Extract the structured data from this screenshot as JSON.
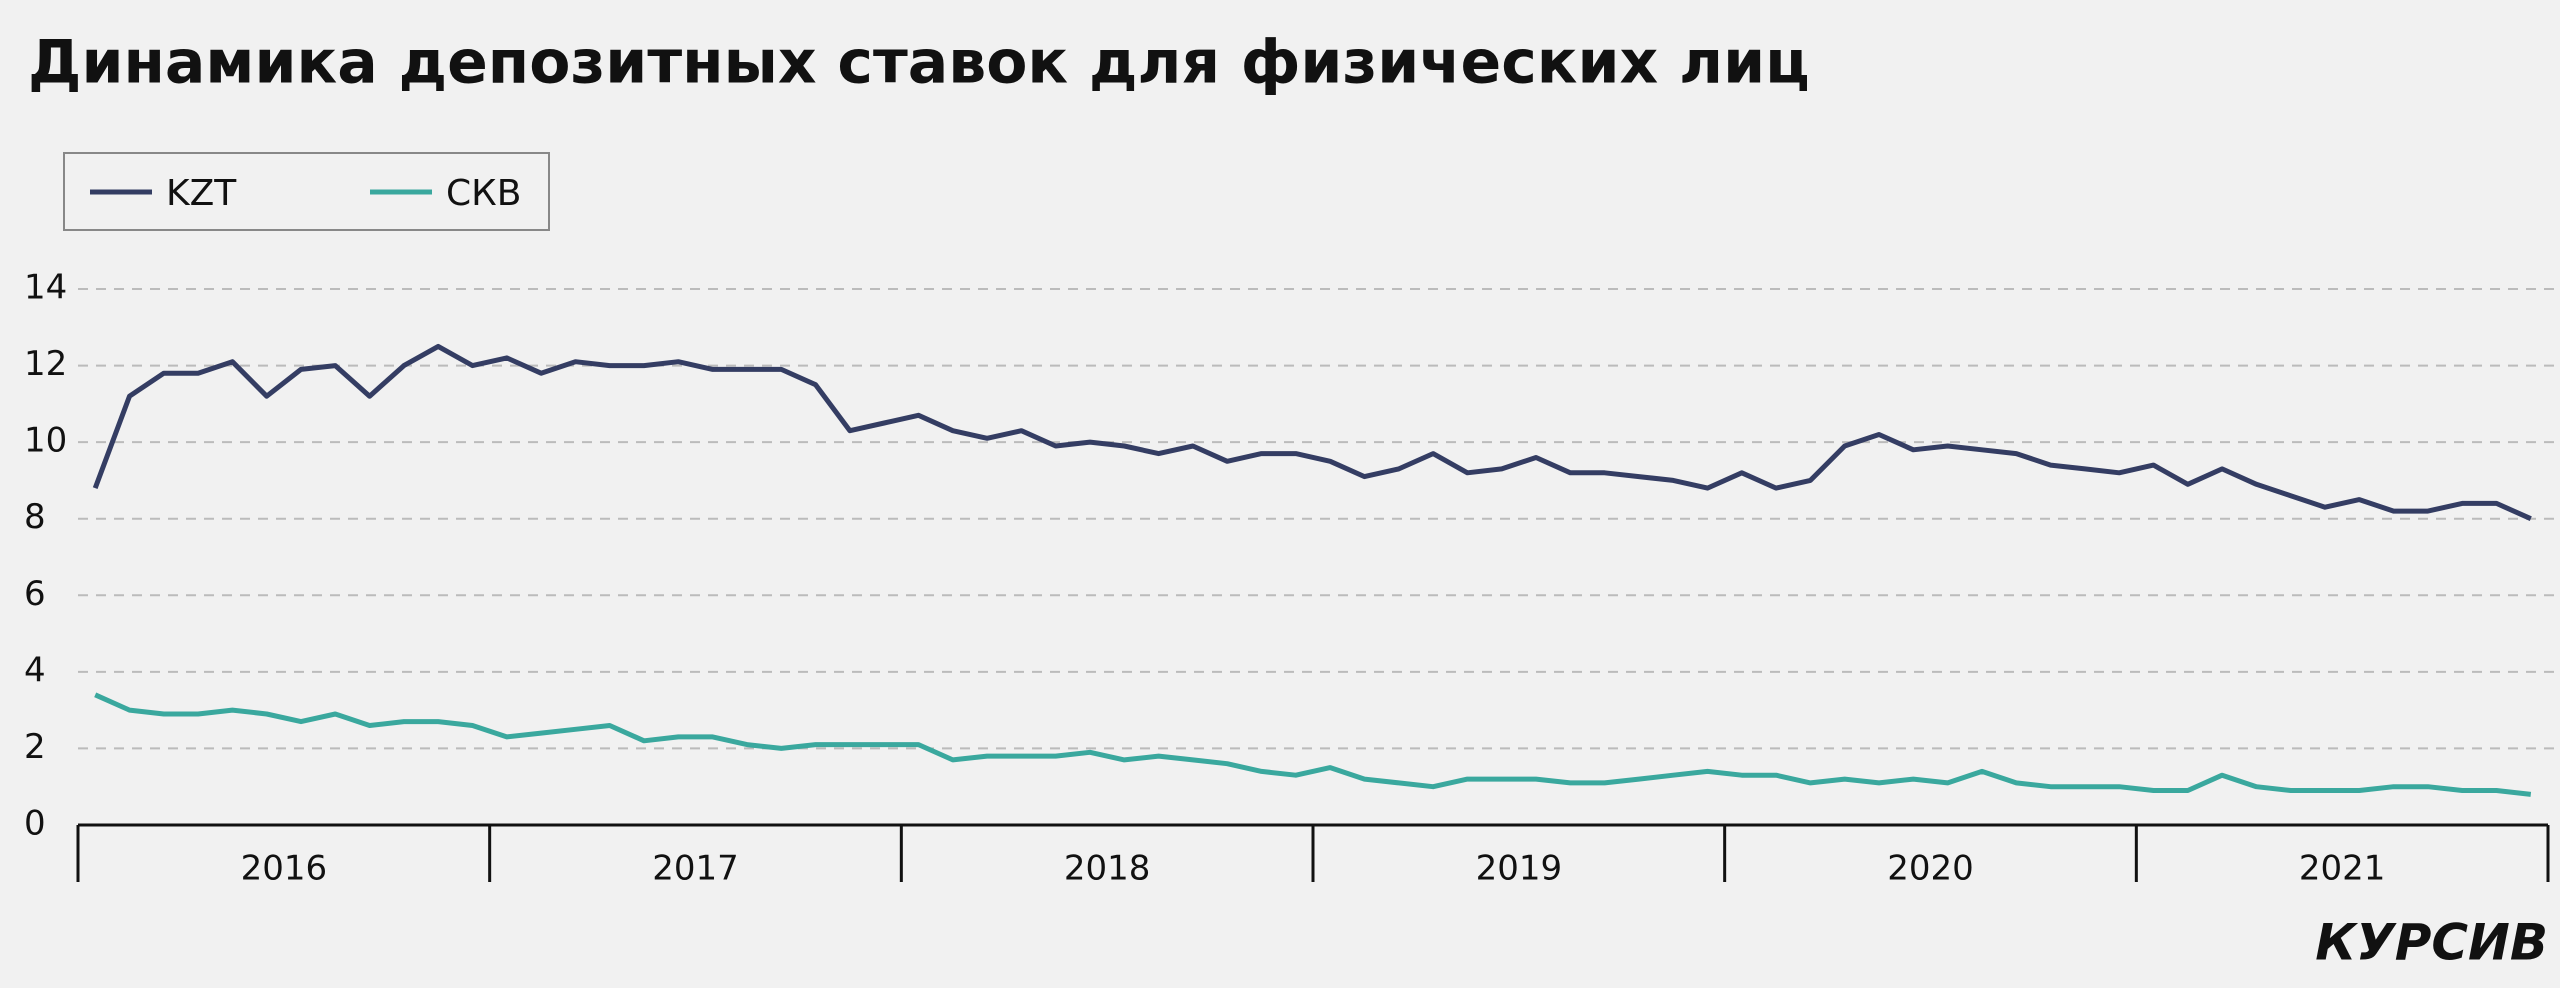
{
  "chart_data": {
    "type": "line",
    "title": "Динамика депозитных ставок для физических лиц",
    "brand": "КУРСИВ",
    "years": [
      "2016",
      "2017",
      "2018",
      "2019",
      "2020",
      "2021"
    ],
    "series": [
      {
        "name": "KZT",
        "color": "#343d63",
        "values": [
          8.8,
          11.2,
          11.8,
          11.8,
          12.1,
          11.2,
          11.9,
          12.0,
          11.2,
          12.0,
          12.5,
          12.0,
          12.2,
          11.8,
          12.1,
          12.0,
          12.0,
          12.1,
          11.9,
          11.9,
          11.9,
          11.5,
          10.3,
          10.5,
          10.7,
          10.3,
          10.1,
          10.3,
          9.9,
          10.0,
          9.9,
          9.7,
          9.9,
          9.5,
          9.7,
          9.7,
          9.5,
          9.1,
          9.3,
          9.7,
          9.2,
          9.3,
          9.6,
          9.2,
          9.2,
          9.1,
          9.0,
          8.8,
          9.2,
          8.8,
          9.0,
          9.9,
          10.2,
          9.8,
          9.9,
          9.8,
          9.7,
          9.4,
          9.3,
          9.2,
          9.4,
          8.9,
          9.3,
          8.9,
          8.6,
          8.3,
          8.5,
          8.2,
          8.2,
          8.4,
          8.4,
          8.0
        ]
      },
      {
        "name": "СКВ",
        "color": "#3aa89e",
        "values": [
          3.4,
          3.0,
          2.9,
          2.9,
          3.0,
          2.9,
          2.7,
          2.9,
          2.6,
          2.7,
          2.7,
          2.6,
          2.3,
          2.4,
          2.5,
          2.6,
          2.2,
          2.3,
          2.3,
          2.1,
          2.0,
          2.1,
          2.1,
          2.1,
          2.1,
          1.7,
          1.8,
          1.8,
          1.8,
          1.9,
          1.7,
          1.8,
          1.7,
          1.6,
          1.4,
          1.3,
          1.5,
          1.2,
          1.1,
          1.0,
          1.2,
          1.2,
          1.2,
          1.1,
          1.1,
          1.2,
          1.3,
          1.4,
          1.3,
          1.3,
          1.1,
          1.2,
          1.1,
          1.2,
          1.1,
          1.4,
          1.1,
          1.0,
          1.0,
          1.0,
          0.9,
          0.9,
          1.3,
          1.0,
          0.9,
          0.9,
          0.9,
          1.0,
          1.0,
          0.9,
          0.9,
          0.8
        ]
      }
    ],
    "ylim": [
      0,
      14
    ],
    "yticks": [
      0,
      2,
      4,
      6,
      8,
      10,
      12,
      14
    ],
    "grid": true,
    "legend": "top-left"
  }
}
